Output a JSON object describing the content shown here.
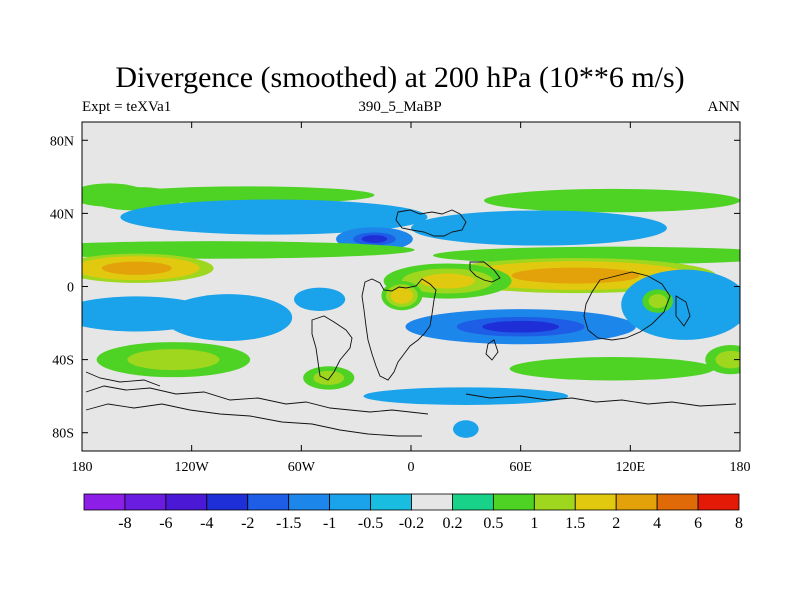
{
  "chart_data": {
    "type": "heatmap",
    "title": "Divergence (smoothed) at 200 hPa (10**6 m/s)",
    "subtitle_left": "Expt = teXVa1",
    "subtitle_center": "390_5_MaBP",
    "subtitle_right": "ANN",
    "xlim": [
      -180,
      180
    ],
    "ylim": [
      -90,
      90
    ],
    "x_ticks": [
      {
        "value": -180,
        "label": "180"
      },
      {
        "value": -120,
        "label": "120W"
      },
      {
        "value": -60,
        "label": "60W"
      },
      {
        "value": 0,
        "label": "0"
      },
      {
        "value": 60,
        "label": "60E"
      },
      {
        "value": 120,
        "label": "120E"
      },
      {
        "value": 180,
        "label": "180"
      }
    ],
    "y_ticks": [
      {
        "value": 80,
        "label": "80N"
      },
      {
        "value": 40,
        "label": "40N"
      },
      {
        "value": 0,
        "label": "0"
      },
      {
        "value": -40,
        "label": "40S"
      },
      {
        "value": -80,
        "label": "80S"
      }
    ],
    "colorbar": {
      "colors": [
        "#8c1ee8",
        "#6a1de0",
        "#4b19d6",
        "#1f2fd8",
        "#1e5de6",
        "#1d86ea",
        "#1aa2ea",
        "#19bde0",
        "#e6e6e6",
        "#18d28a",
        "#4ed224",
        "#9fd61e",
        "#e0c90e",
        "#e3a10a",
        "#e06a08",
        "#e41a06"
      ],
      "labels": [
        "-8",
        "-6",
        "-4",
        "-2",
        "-1.5",
        "-1",
        "-0.5",
        "-0.2",
        "0.2",
        "0.5",
        "1",
        "1.5",
        "2",
        "4",
        "6",
        "8"
      ]
    },
    "fields": [
      {
        "lon": -165,
        "lat": 50,
        "value": 0.8,
        "sx": 15,
        "sy": 4
      },
      {
        "lon": -150,
        "lat": 48,
        "value": 0.5,
        "sx": 18,
        "sy": 4
      },
      {
        "lon": -90,
        "lat": 50,
        "value": 0.6,
        "sx": 50,
        "sy": 3
      },
      {
        "lon": 110,
        "lat": 47,
        "value": 0.8,
        "sx": 50,
        "sy": 4
      },
      {
        "lon": -75,
        "lat": 38,
        "value": -0.7,
        "sx": 60,
        "sy": 6
      },
      {
        "lon": -20,
        "lat": 26,
        "value": -2.2,
        "sx": 15,
        "sy": 4
      },
      {
        "lon": 70,
        "lat": 32,
        "value": -0.6,
        "sx": 50,
        "sy": 6
      },
      {
        "lon": -110,
        "lat": 20,
        "value": 0.8,
        "sx": 80,
        "sy": 3
      },
      {
        "lon": 110,
        "lat": 17,
        "value": 0.7,
        "sx": 70,
        "sy": 3
      },
      {
        "lon": -150,
        "lat": 10,
        "value": 2.5,
        "sx": 30,
        "sy": 5
      },
      {
        "lon": 90,
        "lat": 6,
        "value": 2.5,
        "sx": 55,
        "sy": 6
      },
      {
        "lon": 20,
        "lat": 3,
        "value": 1.5,
        "sx": 25,
        "sy": 6
      },
      {
        "lon": -5,
        "lat": -5,
        "value": 1.8,
        "sx": 8,
        "sy": 5
      },
      {
        "lon": -50,
        "lat": -7,
        "value": -0.8,
        "sx": 10,
        "sy": 4
      },
      {
        "lon": -150,
        "lat": -15,
        "value": -0.7,
        "sx": 30,
        "sy": 6
      },
      {
        "lon": -100,
        "lat": -17,
        "value": -0.8,
        "sx": 25,
        "sy": 8
      },
      {
        "lon": 60,
        "lat": -22,
        "value": -2.2,
        "sx": 45,
        "sy": 6
      },
      {
        "lon": 150,
        "lat": -10,
        "value": -1.0,
        "sx": 25,
        "sy": 12
      },
      {
        "lon": 135,
        "lat": -8,
        "value": 1.2,
        "sx": 6,
        "sy": 4
      },
      {
        "lon": -130,
        "lat": -40,
        "value": 1.0,
        "sx": 30,
        "sy": 6
      },
      {
        "lon": -45,
        "lat": -50,
        "value": 1.2,
        "sx": 10,
        "sy": 4
      },
      {
        "lon": 110,
        "lat": -45,
        "value": 0.8,
        "sx": 40,
        "sy": 4
      },
      {
        "lon": 175,
        "lat": -40,
        "value": 1.0,
        "sx": 10,
        "sy": 5
      },
      {
        "lon": 30,
        "lat": -60,
        "value": -0.7,
        "sx": 40,
        "sy": 3
      },
      {
        "lon": 30,
        "lat": -78,
        "value": -0.8,
        "sx": 5,
        "sy": 3
      }
    ]
  }
}
